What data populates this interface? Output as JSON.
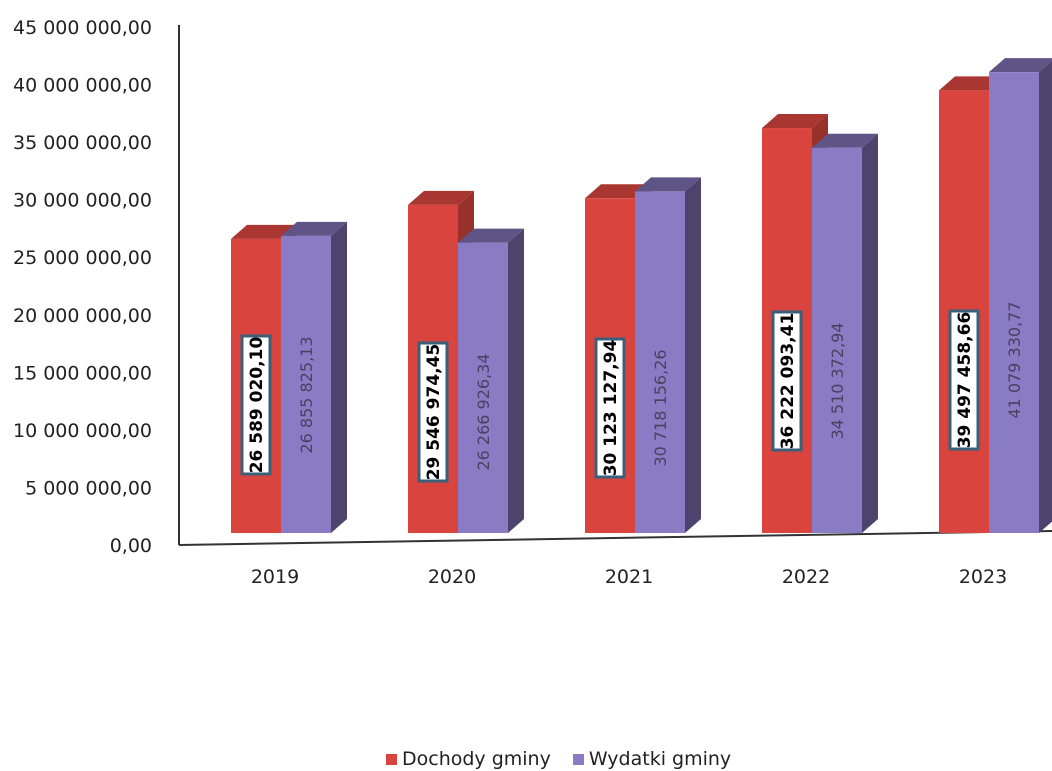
{
  "chart_data": {
    "type": "bar",
    "title": "",
    "xlabel": "",
    "ylabel": "",
    "categories": [
      "2019",
      "2020",
      "2021",
      "2022",
      "2023"
    ],
    "series": [
      {
        "name": "Dochody gminy",
        "color": "#d9453e",
        "values": [
          26589020.1,
          29546974.45,
          30123127.94,
          36222093.41,
          39497458.66
        ],
        "labels": [
          "26 589 020,10",
          "29 546 974,45",
          "30 123 127,94",
          "36 222 093,41",
          "39 497 458,66"
        ]
      },
      {
        "name": "Wydatki gminy",
        "color": "#8a7cc4",
        "values": [
          26855825.13,
          26266926.34,
          30718156.26,
          34510372.94,
          41079330.77
        ],
        "labels": [
          "26 855 825,13",
          "26 266 926,34",
          "30 718 156,26",
          "34 510 372,94",
          "41 079 330,77"
        ]
      }
    ],
    "ylim": [
      0,
      45000000
    ],
    "y_ticks": [
      0,
      5000000,
      10000000,
      15000000,
      20000000,
      25000000,
      30000000,
      35000000,
      40000000,
      45000000
    ],
    "y_tick_labels": [
      "0,00",
      "5 000 000,00",
      "10 000 000,00",
      "15 000 000,00",
      "20 000 000,00",
      "25 000 000,00",
      "30 000 000,00",
      "35 000 000,00",
      "40 000 000,00",
      "45 000 000,00"
    ],
    "grid": false,
    "legend_position": "bottom",
    "style": "3d-clustered-column"
  }
}
